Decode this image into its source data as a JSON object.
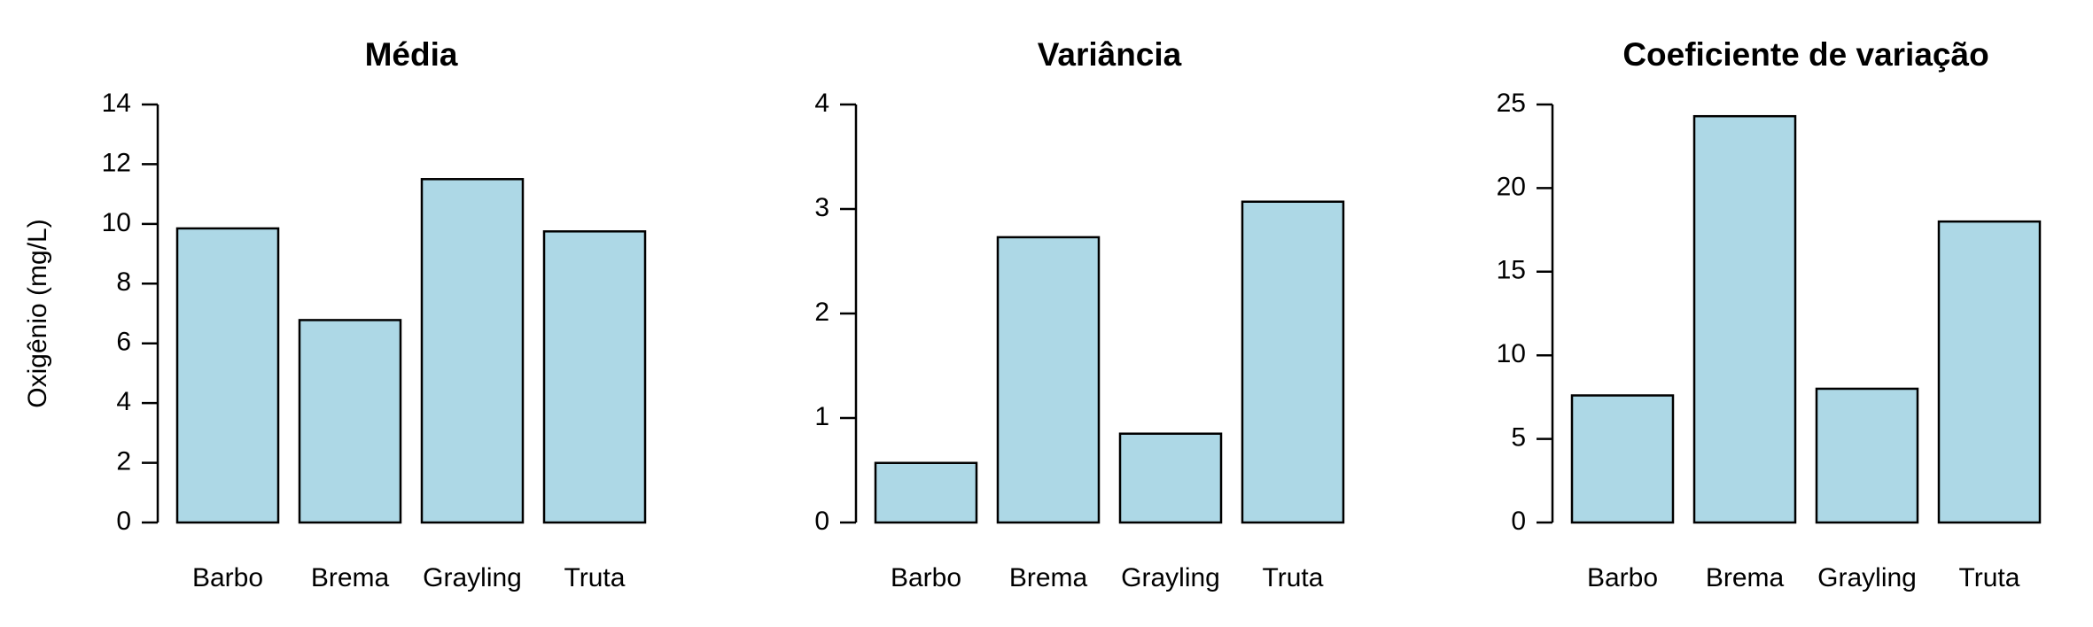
{
  "colors": {
    "bar_fill": "#add8e6",
    "bar_stroke": "#000000"
  },
  "chart_data": [
    {
      "type": "bar",
      "title": "Média",
      "xlabel": "",
      "ylabel": "Oxigênio (mg/L)",
      "categories": [
        "Barbo",
        "Brema",
        "Grayling",
        "Truta"
      ],
      "values": [
        9.85,
        6.78,
        11.5,
        9.75
      ],
      "ylim": [
        0,
        14
      ],
      "yticks": [
        0,
        2,
        4,
        6,
        8,
        10,
        12,
        14
      ],
      "grid": false,
      "legend": "none"
    },
    {
      "type": "bar",
      "title": "Variância",
      "xlabel": "",
      "ylabel": "",
      "categories": [
        "Barbo",
        "Brema",
        "Grayling",
        "Truta"
      ],
      "values": [
        0.57,
        2.73,
        0.85,
        3.07
      ],
      "ylim": [
        0,
        4
      ],
      "yticks": [
        0,
        1,
        2,
        3,
        4
      ],
      "grid": false,
      "legend": "none"
    },
    {
      "type": "bar",
      "title": "Coeficiente de variação",
      "xlabel": "",
      "ylabel": "",
      "categories": [
        "Barbo",
        "Brema",
        "Grayling",
        "Truta"
      ],
      "values": [
        7.6,
        24.3,
        8.0,
        18.0
      ],
      "ylim": [
        0,
        25
      ],
      "yticks": [
        0,
        5,
        10,
        15,
        20,
        25
      ],
      "grid": false,
      "legend": "none"
    }
  ]
}
